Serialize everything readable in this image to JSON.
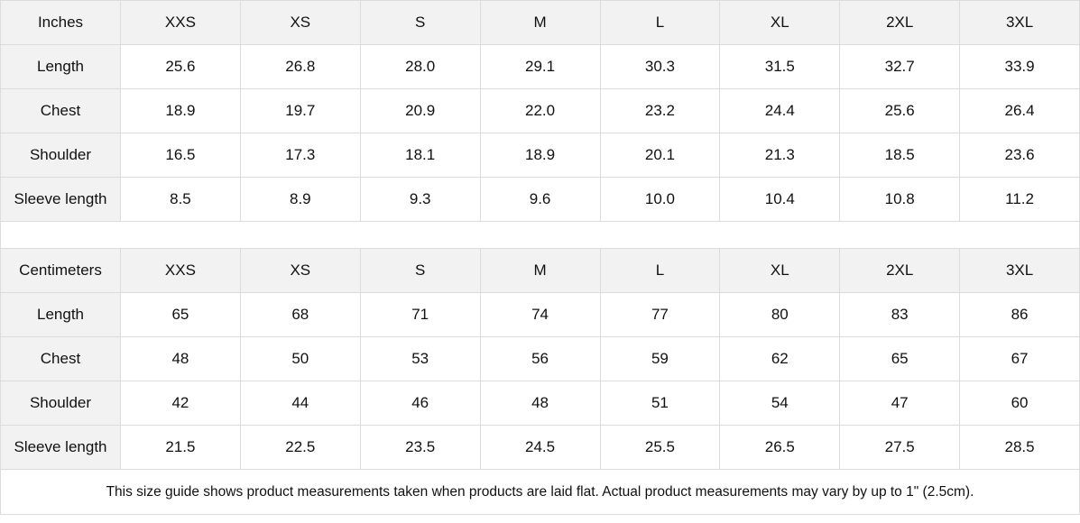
{
  "sizes": [
    "XXS",
    "XS",
    "S",
    "M",
    "L",
    "XL",
    "2XL",
    "3XL"
  ],
  "tables": [
    {
      "unit": "Inches",
      "rows": [
        {
          "label": "Length",
          "values": [
            "25.6",
            "26.8",
            "28.0",
            "29.1",
            "30.3",
            "31.5",
            "32.7",
            "33.9"
          ]
        },
        {
          "label": "Chest",
          "values": [
            "18.9",
            "19.7",
            "20.9",
            "22.0",
            "23.2",
            "24.4",
            "25.6",
            "26.4"
          ]
        },
        {
          "label": "Shoulder",
          "values": [
            "16.5",
            "17.3",
            "18.1",
            "18.9",
            "20.1",
            "21.3",
            "18.5",
            "23.6"
          ]
        },
        {
          "label": "Sleeve length",
          "values": [
            "8.5",
            "8.9",
            "9.3",
            "9.6",
            "10.0",
            "10.4",
            "10.8",
            "11.2"
          ]
        }
      ]
    },
    {
      "unit": "Centimeters",
      "rows": [
        {
          "label": "Length",
          "values": [
            "65",
            "68",
            "71",
            "74",
            "77",
            "80",
            "83",
            "86"
          ]
        },
        {
          "label": "Chest",
          "values": [
            "48",
            "50",
            "53",
            "56",
            "59",
            "62",
            "65",
            "67"
          ]
        },
        {
          "label": "Shoulder",
          "values": [
            "42",
            "44",
            "46",
            "48",
            "51",
            "54",
            "47",
            "60"
          ]
        },
        {
          "label": "Sleeve length",
          "values": [
            "21.5",
            "22.5",
            "23.5",
            "24.5",
            "25.5",
            "26.5",
            "27.5",
            "28.5"
          ]
        }
      ]
    }
  ],
  "note": "This size guide shows product measurements taken when products are laid flat.  Actual product measurements may vary by up to 1\" (2.5cm).",
  "colors": {
    "header_bg": "#f2f2f2",
    "border": "#dcdcdc",
    "text": "#111111"
  }
}
